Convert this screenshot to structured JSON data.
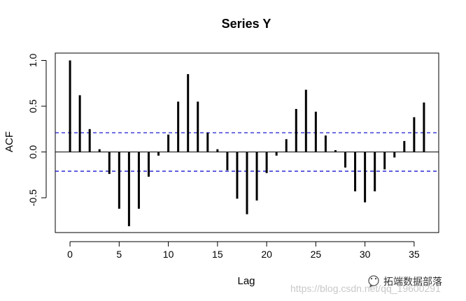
{
  "chart_data": {
    "type": "bar",
    "title": "Series  Y",
    "xlabel": "Lag",
    "ylabel": "ACF",
    "xlim": [
      -1.5,
      37.5
    ],
    "ylim": [
      -0.88,
      1.08
    ],
    "x_ticks": [
      0,
      5,
      10,
      15,
      20,
      25,
      30,
      35
    ],
    "x_tick_labels": [
      "0",
      "5",
      "10",
      "15",
      "20",
      "25",
      "30",
      "35"
    ],
    "y_ticks": [
      -0.5,
      0.0,
      0.5,
      1.0
    ],
    "y_tick_labels": [
      "-0.5",
      "0.0",
      "0.5",
      "1.0"
    ],
    "confidence_limit": 0.21,
    "confidence_color": "#0000cc",
    "bar_color": "#000000",
    "x": [
      0,
      1,
      2,
      3,
      4,
      5,
      6,
      7,
      8,
      9,
      10,
      11,
      12,
      13,
      14,
      15,
      16,
      17,
      18,
      19,
      20,
      21,
      22,
      23,
      24,
      25,
      26,
      27,
      28,
      29,
      30,
      31,
      32,
      33,
      34,
      35,
      36
    ],
    "values": [
      1.0,
      0.62,
      0.25,
      0.03,
      -0.24,
      -0.62,
      -0.81,
      -0.62,
      -0.27,
      -0.04,
      0.19,
      0.55,
      0.85,
      0.55,
      0.21,
      0.03,
      -0.2,
      -0.51,
      -0.68,
      -0.53,
      -0.23,
      -0.04,
      0.14,
      0.47,
      0.68,
      0.44,
      0.18,
      0.02,
      -0.17,
      -0.43,
      -0.55,
      -0.43,
      -0.19,
      -0.06,
      0.12,
      0.38,
      0.54
    ],
    "grid": false,
    "legend": "none"
  },
  "watermark": {
    "brand": "拓端数据部落",
    "url": "https://blog.csdn.net/qq_19600291"
  }
}
